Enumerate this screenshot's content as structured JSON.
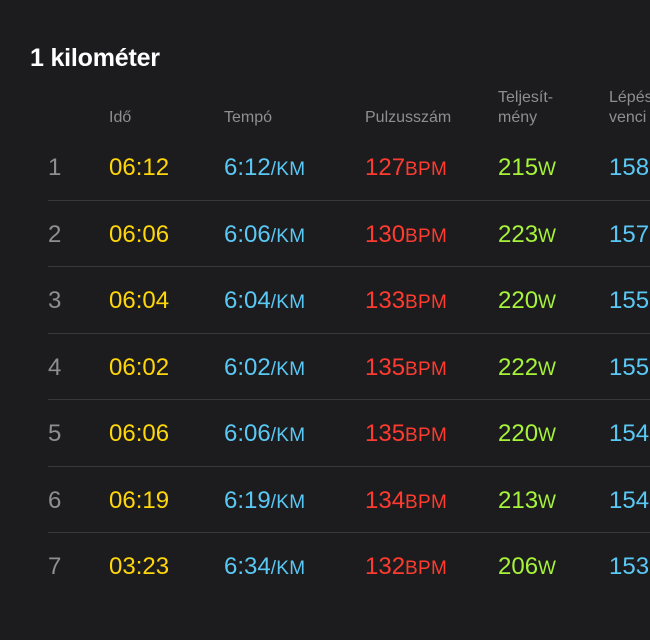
{
  "section_title": "1 kilométer",
  "columns": {
    "ido": "Idő",
    "tempo": "Tempó",
    "pulzus": "Pulzusszám",
    "teljesitmeny_line1": "Teljesít-",
    "teljesitmeny_line2": "mény",
    "lepes_line1": "Lépés",
    "lepes_line2": "venci"
  },
  "units": {
    "tempo": "/KM",
    "pulzus": "BPM",
    "teljesitmeny": "W"
  },
  "colors": {
    "background": "#1c1c1e",
    "ido": "#ffd60a",
    "tempo": "#5ac8f5",
    "pulzus": "#ff3b30",
    "teljesitmeny": "#a6f33a",
    "lepes": "#5ac8f5",
    "muted": "#8e8e93"
  },
  "splits": [
    {
      "num": "1",
      "ido": "06:12",
      "tempo": "6:12",
      "pulzus": "127",
      "telj": "215",
      "lepes": "158"
    },
    {
      "num": "2",
      "ido": "06:06",
      "tempo": "6:06",
      "pulzus": "130",
      "telj": "223",
      "lepes": "157"
    },
    {
      "num": "3",
      "ido": "06:04",
      "tempo": "6:04",
      "pulzus": "133",
      "telj": "220",
      "lepes": "155"
    },
    {
      "num": "4",
      "ido": "06:02",
      "tempo": "6:02",
      "pulzus": "135",
      "telj": "222",
      "lepes": "155"
    },
    {
      "num": "5",
      "ido": "06:06",
      "tempo": "6:06",
      "pulzus": "135",
      "telj": "220",
      "lepes": "154"
    },
    {
      "num": "6",
      "ido": "06:19",
      "tempo": "6:19",
      "pulzus": "134",
      "telj": "213",
      "lepes": "154"
    },
    {
      "num": "7",
      "ido": "03:23",
      "tempo": "6:34",
      "pulzus": "132",
      "telj": "206",
      "lepes": "153"
    }
  ]
}
